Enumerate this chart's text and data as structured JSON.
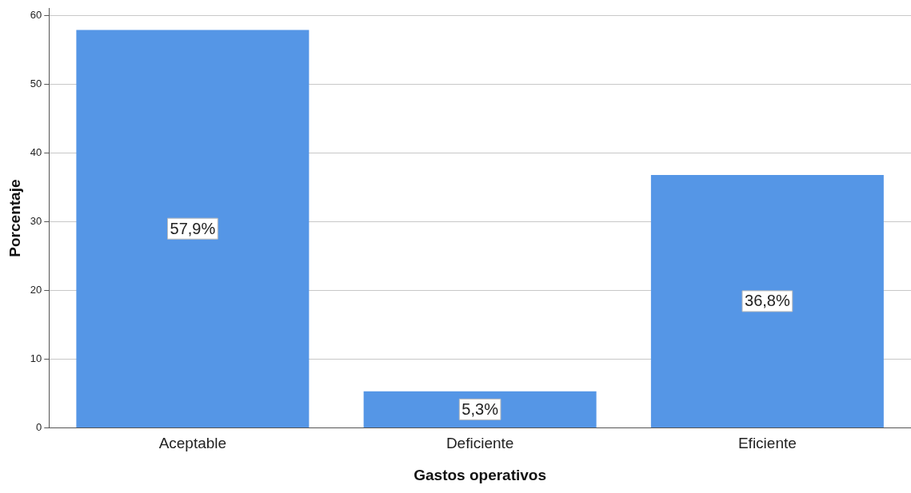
{
  "chart_data": {
    "type": "bar",
    "xlabel": "Gastos operativos",
    "ylabel": "Porcentaje",
    "categories": [
      "Aceptable",
      "Deficiente",
      "Eficiente"
    ],
    "values": [
      57.9,
      5.3,
      36.8
    ],
    "color": "#5596e6",
    "value_labels": [
      "57,9%",
      "5,3%",
      "36,8%"
    ],
    "ylim": [
      0,
      61
    ],
    "yticks": [
      0,
      10,
      20,
      30,
      40,
      50,
      60
    ],
    "grid": "y",
    "legend": false
  }
}
